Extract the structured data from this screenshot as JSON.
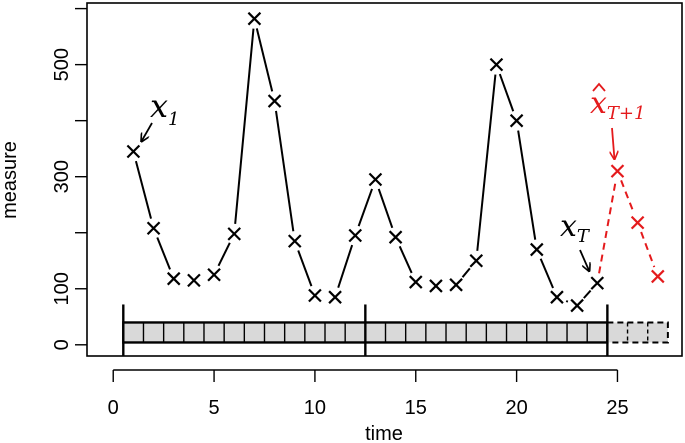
{
  "chart_data": {
    "type": "line",
    "xlabel": "time",
    "ylabel": "measure",
    "xlim": [
      -1.3,
      28.2
    ],
    "ylim": [
      -20,
      610
    ],
    "x_ticks": [
      0,
      5,
      10,
      15,
      20,
      25
    ],
    "x_tick_labels": [
      "0",
      "5",
      "10",
      "15",
      "20",
      "25"
    ],
    "y_ticks": [
      0,
      100,
      200,
      300,
      400,
      500,
      600
    ],
    "y_tick_labels": [
      "0",
      "100",
      "",
      "300",
      "",
      "500",
      ""
    ],
    "series": [
      {
        "color": "#000000",
        "line_style": "long-dash",
        "marker": "x",
        "x": [
          1,
          2,
          3,
          4,
          5,
          6,
          7,
          8,
          9,
          10,
          11,
          12,
          13,
          14,
          15,
          16,
          17,
          18,
          19,
          20,
          21,
          22,
          23,
          24
        ],
        "y": [
          345,
          208,
          118,
          115,
          125,
          198,
          582,
          435,
          185,
          88,
          85,
          195,
          295,
          192,
          112,
          105,
          107,
          150,
          500,
          400,
          170,
          85,
          70,
          110
        ]
      },
      {
        "color": "#e41a1c",
        "line_style": "short-dash",
        "marker": "x",
        "x": [
          24,
          25,
          26,
          27
        ],
        "y": [
          110,
          310,
          218,
          122
        ]
      }
    ],
    "timeline_bar": {
      "y": 22,
      "observed": [
        1,
        24
      ],
      "forecast": [
        25,
        27
      ],
      "segment_breaks": [
        12.5
      ],
      "fill": "#d9d9d9"
    },
    "annotations": [
      {
        "base": "x",
        "sub": "1",
        "color": "#000000",
        "hat": false,
        "points_to": {
          "x": 1,
          "y": 345
        }
      },
      {
        "base": "x",
        "sub": "T",
        "color": "#000000",
        "hat": false,
        "points_to": {
          "x": 24,
          "y": 110
        }
      },
      {
        "base": "x",
        "sub": "T+1",
        "color": "#e41a1c",
        "hat": true,
        "points_to": {
          "x": 25,
          "y": 310
        }
      }
    ]
  }
}
